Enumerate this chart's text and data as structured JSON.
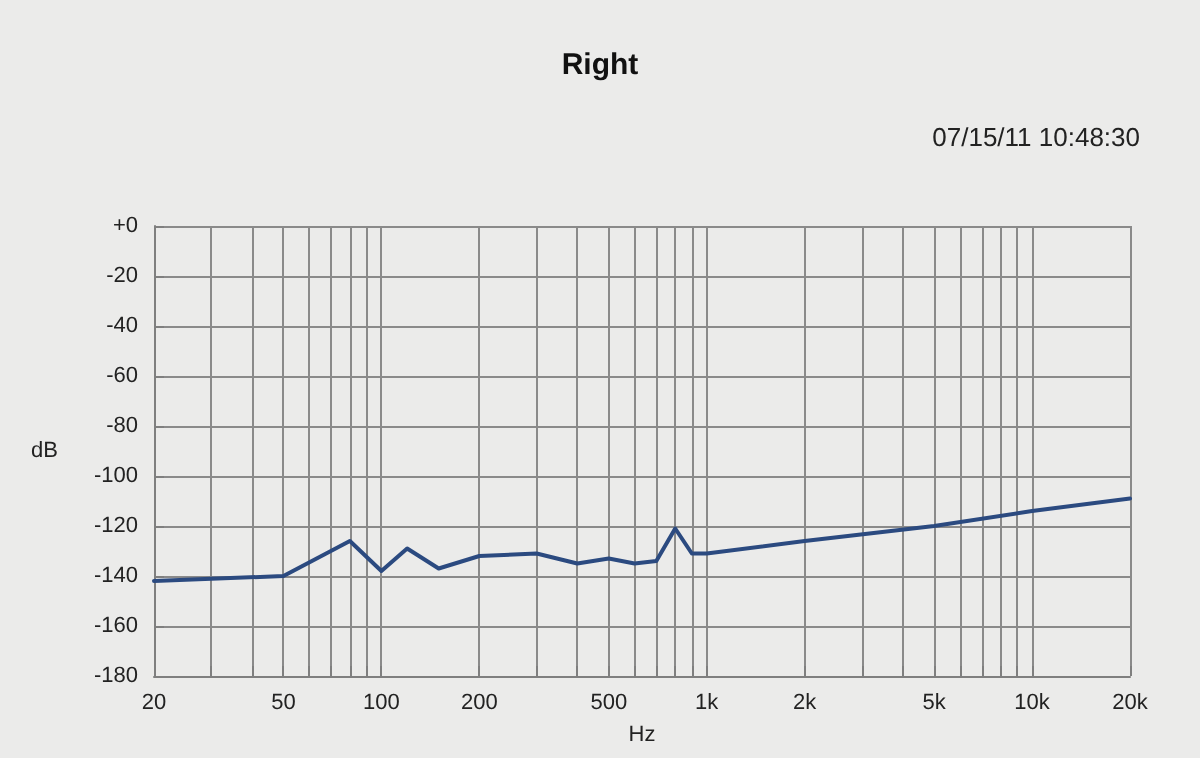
{
  "chart_data": {
    "type": "line",
    "title": "Right",
    "annotations": [
      "07/15/11 10:48:30"
    ],
    "xlabel": "Hz",
    "ylabel": "dB",
    "x": [
      20,
      50,
      80,
      100,
      120,
      150,
      200,
      300,
      400,
      500,
      600,
      700,
      800,
      900,
      1000,
      2000,
      5000,
      10000,
      20000
    ],
    "series": [
      {
        "color": "#2b4a80",
        "values": [
          -142,
          -140,
          -126,
          -138,
          -129,
          -137,
          -132,
          -131,
          -135,
          -133,
          -135,
          -134,
          -121,
          -131,
          -131,
          -126,
          -120,
          -114,
          -109
        ]
      }
    ],
    "log": "x",
    "xlim": [
      20,
      20000
    ],
    "ylim": [
      -180,
      0
    ],
    "xticks": [
      20,
      {
        "value": 30,
        "label": null
      },
      {
        "value": 40,
        "label": null
      },
      50,
      {
        "value": 60,
        "label": null
      },
      {
        "value": 70,
        "label": null
      },
      {
        "value": 80,
        "label": null
      },
      {
        "value": 90,
        "label": null
      },
      100,
      200,
      {
        "value": 300,
        "label": null
      },
      {
        "value": 400,
        "label": null
      },
      500,
      {
        "value": 600,
        "label": null
      },
      {
        "value": 700,
        "label": null
      },
      {
        "value": 800,
        "label": null
      },
      {
        "value": 900,
        "label": null
      },
      {
        "value": 1000,
        "label": "1k"
      },
      {
        "value": 2000,
        "label": "2k"
      },
      {
        "value": 3000,
        "label": null
      },
      {
        "value": 4000,
        "label": null
      },
      {
        "value": 5000,
        "label": "5k"
      },
      {
        "value": 6000,
        "label": null
      },
      {
        "value": 7000,
        "label": null
      },
      {
        "value": 8000,
        "label": null
      },
      {
        "value": 9000,
        "label": null
      },
      {
        "value": 10000,
        "label": "10k"
      },
      {
        "value": 20000,
        "label": "20k"
      }
    ],
    "yticks": [
      -180,
      -160,
      -140,
      -120,
      -100,
      -80,
      -60,
      -40,
      -20,
      {
        "value": 0,
        "label": "+0"
      }
    ],
    "grid": true,
    "marker": "none",
    "line_style": "solid"
  }
}
